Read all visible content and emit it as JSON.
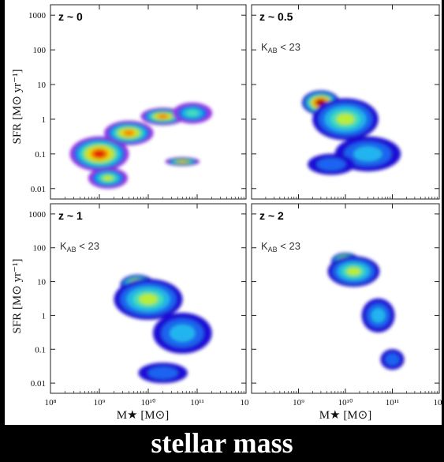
{
  "caption": "stellar mass",
  "chart_data": {
    "type": "heatmap",
    "layout": "2x2 grid of density panels with shared axes",
    "xlabel": "M★ [M⊙]",
    "ylabel": "SFR [M⊙ yr⁻¹]",
    "x_scale": "log",
    "y_scale": "log",
    "xlim": [
      100000000.0,
      1000000000000.0
    ],
    "ylim": [
      0.005,
      2000
    ],
    "x_tick_labels": [
      "10⁸",
      "10⁹",
      "10¹⁰",
      "10¹¹",
      "10"
    ],
    "y_tick_labels": [
      "1000",
      "100",
      "10",
      "1",
      "0.1",
      "0.01"
    ],
    "colormap": [
      "#1a0fd8",
      "#1f63f2",
      "#22b4f0",
      "#3fe0c0",
      "#b8ef3a",
      "#f2e614",
      "#ff8a06",
      "#e81a06",
      "#8e0000"
    ],
    "panels": [
      {
        "label": "z ~ 0",
        "selection": "",
        "colormap_note": "full rainbow incl. magenta outskirts",
        "blobs": [
          {
            "x": 1000000000.0,
            "y": 0.1,
            "sx": 0.6,
            "sy": 0.5,
            "level": 8
          },
          {
            "x": 4000000000.0,
            "y": 0.4,
            "sx": 0.5,
            "sy": 0.35,
            "level": 7
          },
          {
            "x": 20000000000.0,
            "y": 1.2,
            "sx": 0.45,
            "sy": 0.25,
            "level": 7
          },
          {
            "x": 50000000000.0,
            "y": 0.06,
            "sx": 0.35,
            "sy": 0.12,
            "level": 6
          },
          {
            "x": 80000000000.0,
            "y": 1.5,
            "sx": 0.4,
            "sy": 0.3,
            "level": 4
          },
          {
            "x": 1500000000.0,
            "y": 0.02,
            "sx": 0.4,
            "sy": 0.3,
            "level": 5
          }
        ]
      },
      {
        "label": "z ~ 0.5",
        "selection": "K_AB < 23",
        "blobs": [
          {
            "x": 3000000000.0,
            "y": 3,
            "sx": 0.4,
            "sy": 0.35,
            "level": 9
          },
          {
            "x": 10000000000.0,
            "y": 1,
            "sx": 0.7,
            "sy": 0.6,
            "level": 5
          },
          {
            "x": 30000000000.0,
            "y": 0.1,
            "sx": 0.7,
            "sy": 0.5,
            "level": 3
          },
          {
            "x": 5000000000.0,
            "y": 0.05,
            "sx": 0.5,
            "sy": 0.3,
            "level": 2
          }
        ]
      },
      {
        "label": "z ~ 1",
        "selection": "K_AB < 23",
        "blobs": [
          {
            "x": 6000000000.0,
            "y": 8,
            "sx": 0.35,
            "sy": 0.3,
            "level": 9
          },
          {
            "x": 10000000000.0,
            "y": 3,
            "sx": 0.7,
            "sy": 0.6,
            "level": 5
          },
          {
            "x": 50000000000.0,
            "y": 0.3,
            "sx": 0.6,
            "sy": 0.6,
            "level": 3
          },
          {
            "x": 20000000000.0,
            "y": 0.02,
            "sx": 0.5,
            "sy": 0.3,
            "level": 2
          }
        ]
      },
      {
        "label": "z ~ 2",
        "selection": "K_AB < 23",
        "blobs": [
          {
            "x": 10000000000.0,
            "y": 40,
            "sx": 0.3,
            "sy": 0.25,
            "level": 9
          },
          {
            "x": 15000000000.0,
            "y": 20,
            "sx": 0.55,
            "sy": 0.45,
            "level": 5
          },
          {
            "x": 50000000000.0,
            "y": 1,
            "sx": 0.35,
            "sy": 0.5,
            "level": 3
          },
          {
            "x": 100000000000.0,
            "y": 0.05,
            "sx": 0.25,
            "sy": 0.3,
            "level": 2
          }
        ]
      }
    ]
  }
}
